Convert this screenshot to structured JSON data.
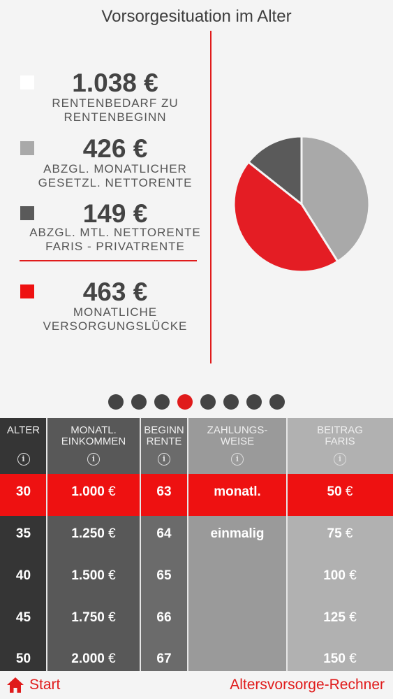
{
  "title": "Vorsorgesituation im Alter",
  "legend": [
    {
      "amount": "1.038 €",
      "line1": "RENTENBEDARF ZU",
      "line2": "RENTENBEGINN",
      "color": "#ffffff"
    },
    {
      "amount": "426 €",
      "line1": "ABZGL. MONATLICHER",
      "line2": "GESETZL. NETTORENTE",
      "color": "#a9a9a9"
    },
    {
      "amount": "149 €",
      "line1": "ABZGL. MTL. NETTORENTE",
      "line2": "FARIS - PRIVATRENTE",
      "color": "#5a5a5a"
    },
    {
      "amount": "463 €",
      "line1": "MONATLICHE",
      "line2": "VERSORGUNGSLÜCKE",
      "color": "#ee1111"
    }
  ],
  "chart_data": {
    "type": "pie",
    "slices": [
      {
        "label": "ABZGL. MONATLICHER GESETZL. NETTORENTE",
        "value": 426,
        "color": "#a9a9a9"
      },
      {
        "label": "MONATLICHE VERSORGUNGSLÜCKE",
        "value": 463,
        "color": "#e41d24"
      },
      {
        "label": "ABZGL. MTL. NETTORENTE FARIS - PRIVATRENTE",
        "value": 149,
        "color": "#5a5a5a"
      }
    ]
  },
  "pager": {
    "count": 8,
    "active_index": 3
  },
  "table": {
    "headers": {
      "alter": [
        "ALTER"
      ],
      "einkommen": [
        "MONATL.",
        "EINKOMMEN"
      ],
      "beginn": [
        "BEGINN",
        "RENTE"
      ],
      "zahlung": [
        "ZAHLUNGS-",
        "WEISE"
      ],
      "beitrag": [
        "BEITRAG",
        "FARIS"
      ]
    },
    "info_icon": "info-circle-icon",
    "alter": [
      "30",
      "35",
      "40",
      "45",
      "50"
    ],
    "einkommen": [
      "1.000",
      "1.250",
      "1.500",
      "1.750",
      "2.000"
    ],
    "beginn": [
      "63",
      "64",
      "65",
      "66",
      "67"
    ],
    "zahlung": [
      "monatl.",
      "einmalig"
    ],
    "beitrag": [
      "50",
      "75",
      "100",
      "125",
      "150"
    ],
    "currency": "€",
    "highlight_color": "#ee1111"
  },
  "footer": {
    "home_icon": "home-icon",
    "start_label": "Start",
    "app_title": "Altersvorsorge-Rechner"
  }
}
